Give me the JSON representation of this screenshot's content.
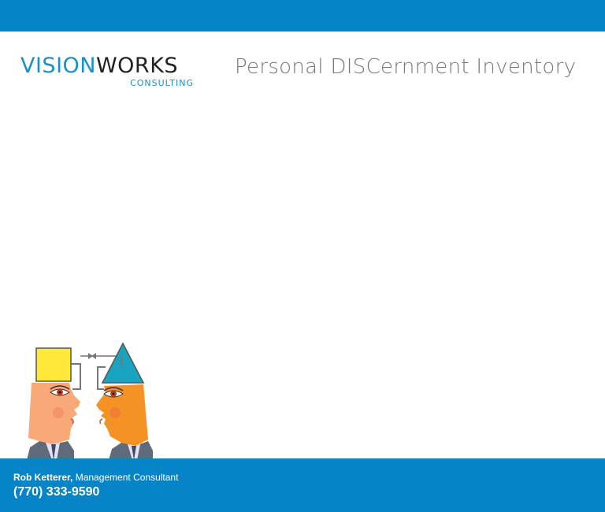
{
  "colors": {
    "brand_blue": "#0584c8",
    "logo_blue": "#1a8fce",
    "logo_dark": "#222222",
    "title_gray": "#777777",
    "square_yellow": "#ffe83a",
    "triangle_teal": "#1aa3c0",
    "face_left": "#f9a878",
    "face_right": "#f59225",
    "suit_gray": "#5f6b7a"
  },
  "logo": {
    "vision": "VISION",
    "works": "WORKS",
    "sub": "CONSULTING"
  },
  "header": {
    "title": "Personal DISCernment Inventory"
  },
  "illustration": {
    "icon": "two-heads-square-triangle"
  },
  "footer": {
    "name": "Rob Ketterer,",
    "role": " Management Consultant",
    "phone": "(770) 333-9590"
  }
}
